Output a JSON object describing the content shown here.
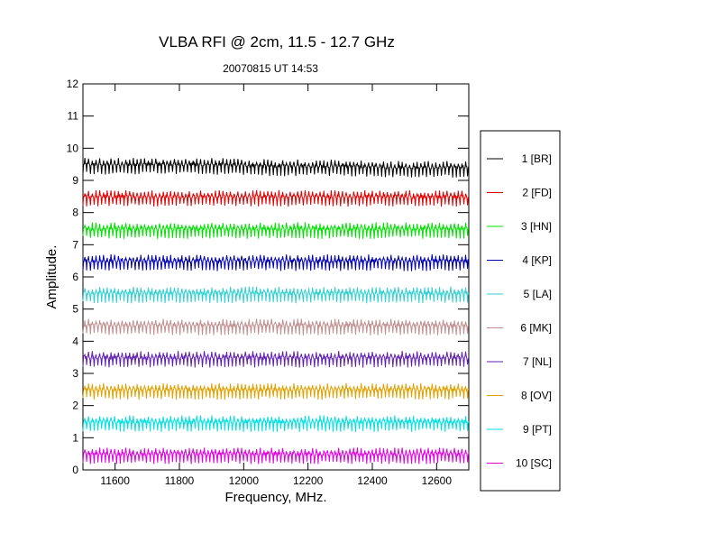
{
  "chart_data": {
    "type": "line",
    "title": "VLBA RFI @ 2cm, 11.5 - 12.7 GHz",
    "subtitle": "20070815   UT 14:53",
    "xlabel": "Frequency, MHz.",
    "ylabel": "Amplitude.",
    "xlim": [
      11500,
      12700
    ],
    "ylim": [
      0,
      12
    ],
    "xticks": [
      11600,
      11800,
      12000,
      12200,
      12400,
      12600
    ],
    "yticks": [
      0,
      1,
      2,
      3,
      4,
      5,
      6,
      7,
      8,
      9,
      10,
      11,
      12
    ],
    "grid": false,
    "legend_position": "right",
    "x": [
      11500,
      11700,
      11900,
      12100,
      12300,
      12500,
      12700
    ],
    "series": [
      {
        "name": "1 [BR]",
        "color": "#000000",
        "values": [
          9.5,
          9.5,
          9.5,
          9.45,
          9.45,
          9.4,
          9.4
        ]
      },
      {
        "name": "2 [FD]",
        "color": "#e00000",
        "values": [
          8.5,
          8.5,
          8.5,
          8.5,
          8.5,
          8.5,
          8.5
        ]
      },
      {
        "name": "3 [HN]",
        "color": "#00e000",
        "values": [
          7.5,
          7.5,
          7.5,
          7.5,
          7.5,
          7.5,
          7.5
        ]
      },
      {
        "name": "4 [KP]",
        "color": "#0000b0",
        "values": [
          6.5,
          6.5,
          6.5,
          6.5,
          6.5,
          6.5,
          6.5
        ]
      },
      {
        "name": "5 [LA]",
        "color": "#30d0d0",
        "values": [
          5.5,
          5.5,
          5.5,
          5.5,
          5.5,
          5.5,
          5.5
        ]
      },
      {
        "name": "6 [MK]",
        "color": "#c09090",
        "values": [
          4.5,
          4.5,
          4.5,
          4.5,
          4.5,
          4.5,
          4.5
        ]
      },
      {
        "name": "7 [NL]",
        "color": "#6020b0",
        "values": [
          3.5,
          3.5,
          3.5,
          3.5,
          3.5,
          3.5,
          3.5
        ]
      },
      {
        "name": "8 [OV]",
        "color": "#e0a000",
        "values": [
          2.5,
          2.5,
          2.5,
          2.5,
          2.5,
          2.5,
          2.5
        ]
      },
      {
        "name": "9 [PT]",
        "color": "#00e0e0",
        "values": [
          1.5,
          1.5,
          1.5,
          1.5,
          1.5,
          1.5,
          1.5
        ]
      },
      {
        "name": "10 [SC]",
        "color": "#e000e0",
        "values": [
          0.5,
          0.5,
          0.5,
          0.5,
          0.5,
          0.5,
          0.5
        ]
      }
    ]
  }
}
